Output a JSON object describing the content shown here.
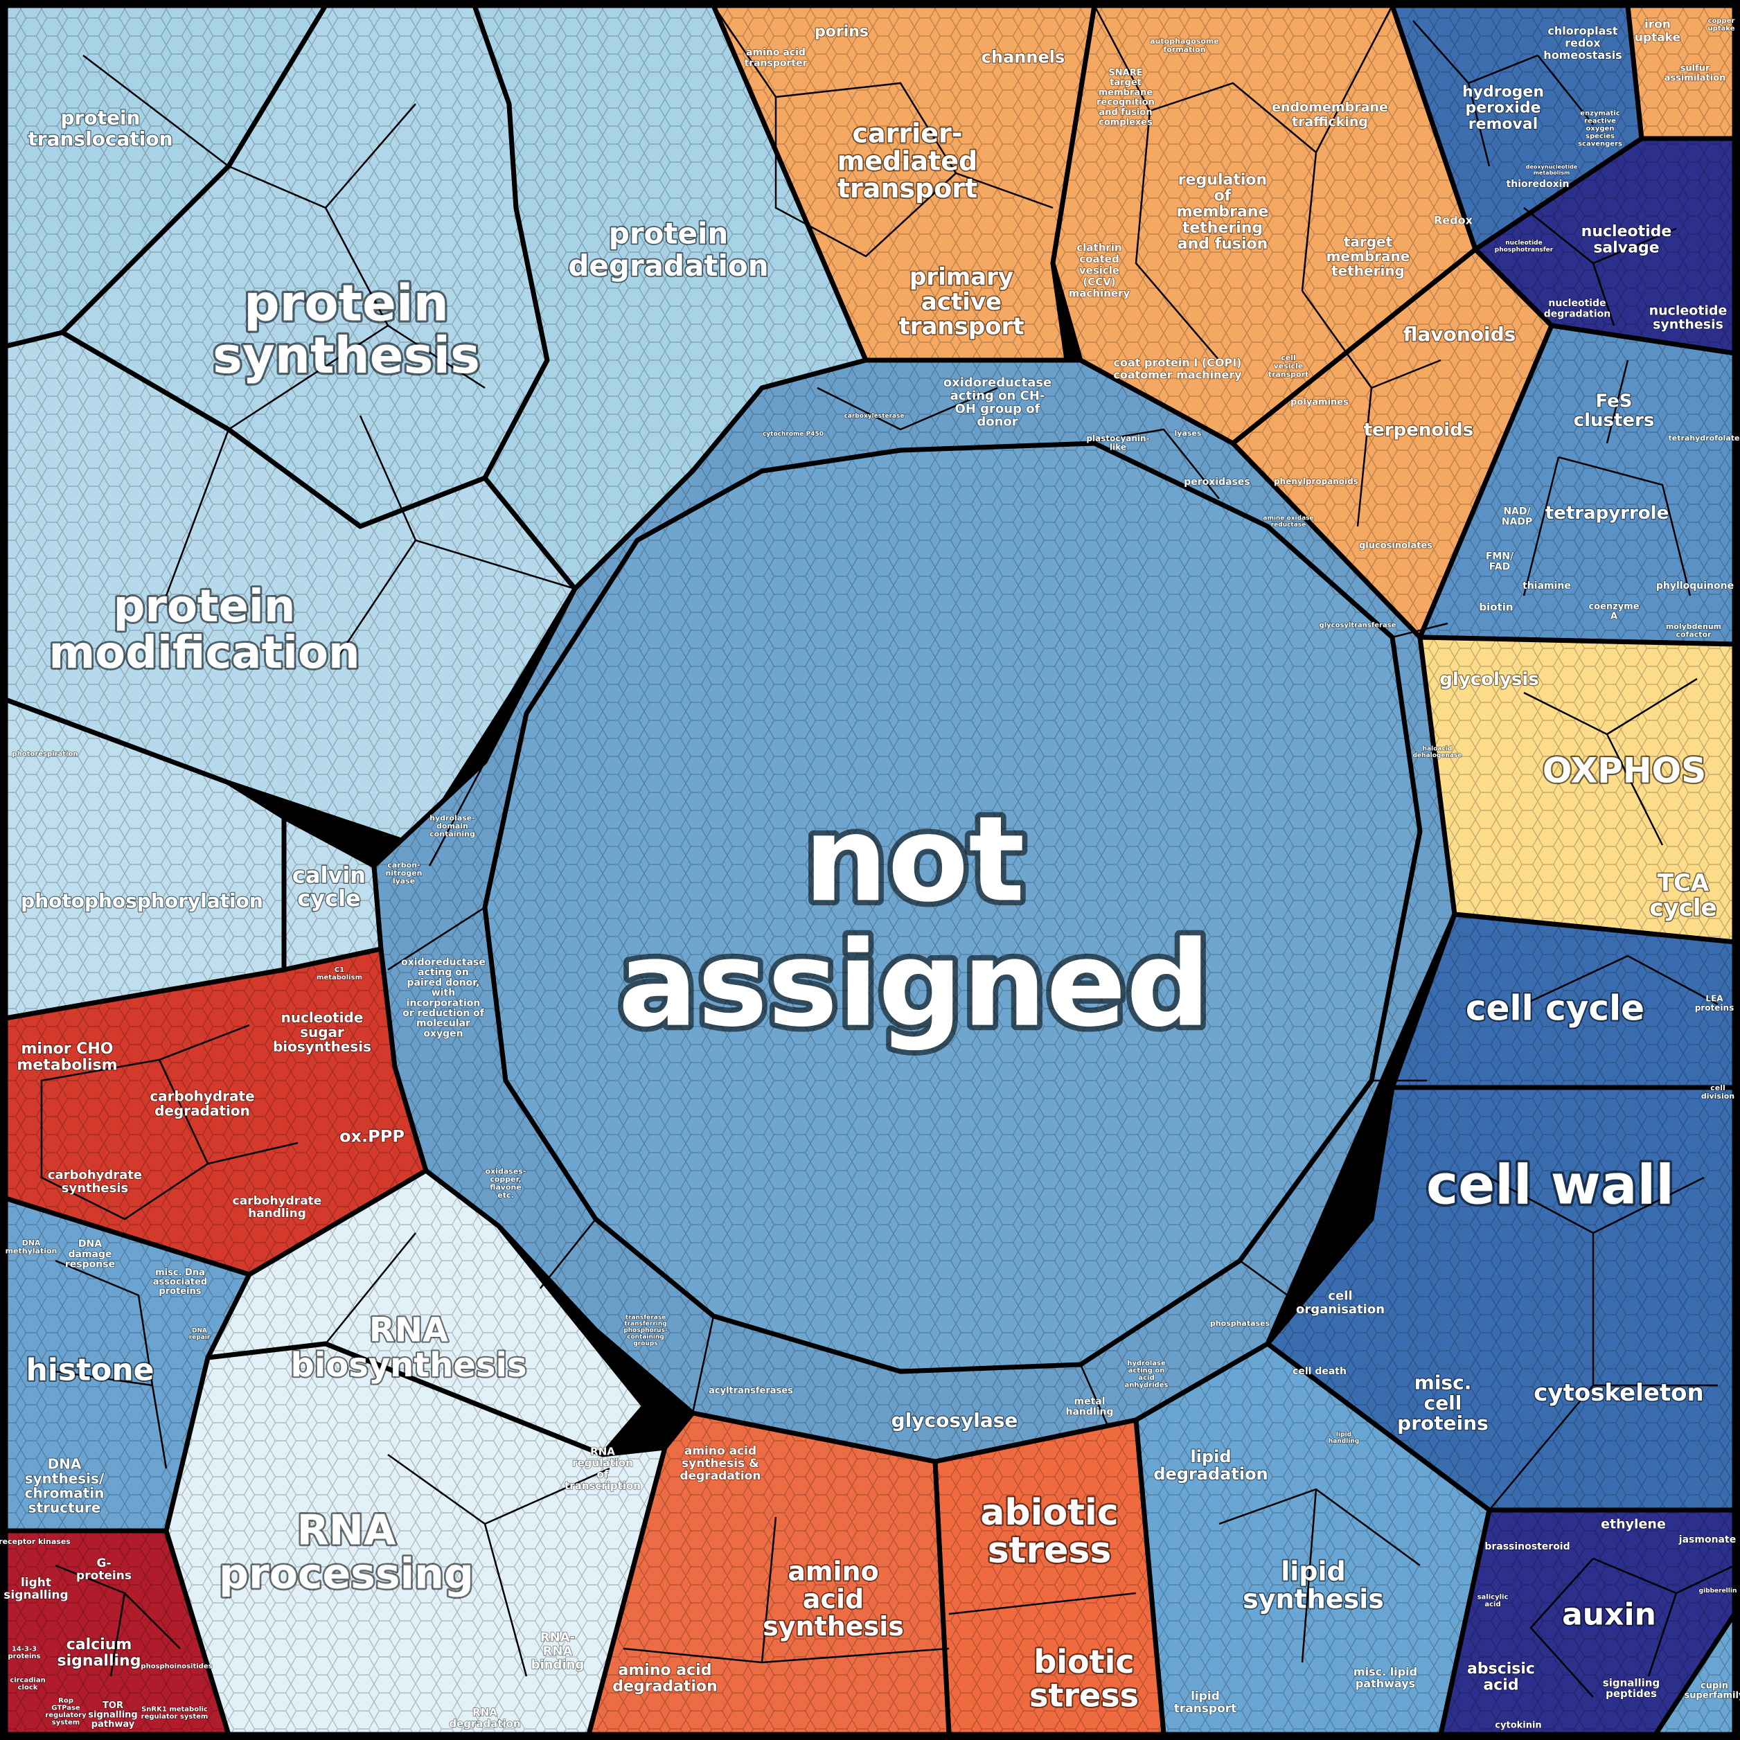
{
  "colors": {
    "protein": "#a8d2e6",
    "protein_alt": "#b6daeb",
    "photosynthesis": "#bfdfee",
    "rna": "#e2f1f8",
    "not_assigned": "#6ea6cf",
    "enzyme": "#6a9fca",
    "transport": "#f5a862",
    "secondary": "#f5a862",
    "redox_dark": "#3d6eb0",
    "nucleotide": "#2c2f8c",
    "cofactor": "#5a92c6",
    "energy": "#fddc8a",
    "cell": "#3a6db0",
    "carbohydrate": "#d33a2b",
    "signalling": "#b01c2c",
    "chromatin": "#6ba4d0",
    "amino_acid": "#ec6c44",
    "stress": "#f06a40",
    "lipid": "#6aa6d3",
    "hormone": "#2c2f8c",
    "outline": "#000000"
  },
  "regions": {
    "not_assigned": [
      "not",
      "assigned"
    ],
    "protein_synthesis": [
      "protein",
      "synthesis"
    ],
    "protein_modification": [
      "protein",
      "modification"
    ],
    "protein_degradation": [
      "protein",
      "degradation"
    ],
    "protein_translocation": [
      "protein",
      "translocation"
    ],
    "photophosphorylation": "photophosphorylation",
    "calvin_cycle": [
      "calvin",
      "cycle"
    ],
    "photorespiration": "photorespiration",
    "rna_biosynthesis": [
      "RNA",
      "biosynthesis"
    ],
    "rna_processing": [
      "RNA",
      "processing"
    ],
    "rna_regulation": [
      "RNA",
      "regulation",
      "of",
      "transcription"
    ],
    "rna_binding": [
      "RNA-",
      "RNA",
      "binding"
    ],
    "rna_degradation": [
      "RNA",
      "degradation"
    ],
    "carrier_transport": [
      "carrier-",
      "mediated",
      "transport"
    ],
    "primary_active_transport": [
      "primary",
      "active",
      "transport"
    ],
    "channels": "channels",
    "porins": "porins",
    "amino_acid_transporter": [
      "amino acid",
      "transporter"
    ],
    "endomembrane_trafficking": [
      "endomembrane",
      "trafficking"
    ],
    "membrane_tethering": [
      "regulation",
      "of",
      "membrane",
      "tethering",
      "and fusion"
    ],
    "target_membrane_tethering": [
      "target",
      "membrane",
      "tethering"
    ],
    "snare": [
      "SNARE",
      "target",
      "membrane",
      "recognition",
      "and fusion",
      "complexes"
    ],
    "autophagosome": [
      "autophagosome",
      "formation"
    ],
    "clathrin": [
      "clathrin",
      "coated",
      "vesicle",
      "(CCV)",
      "machinery"
    ],
    "copi": [
      "coat protein I (COPI)",
      "coatomer machinery"
    ],
    "cell_vesicle": [
      "cell",
      "vesicle",
      "transport"
    ],
    "flavonoids": "flavonoids",
    "terpenoids": "terpenoids",
    "polyamines": "polyamines",
    "phenylpropanoids": "phenylpropanoids",
    "glucosinolates": "glucosinolates",
    "iron_uptake": [
      "iron",
      "uptake"
    ],
    "sulfur_assimilation": [
      "sulfur",
      "assimilation"
    ],
    "copper": [
      "copper",
      "uptake"
    ],
    "chloroplast_redox": [
      "chloroplast",
      "redox",
      "homeostasis"
    ],
    "hydrogen_peroxide": [
      "hydrogen",
      "peroxide",
      "removal"
    ],
    "ros_scavengers": [
      "enzymatic",
      "reactive",
      "oxygen",
      "species",
      "scavengers"
    ],
    "thioredoxin": "thioredoxin",
    "redox": "Redox",
    "nucleotide_salvage": [
      "nucleotide",
      "salvage"
    ],
    "nucleotide_degradation": [
      "nucleotide",
      "degradation"
    ],
    "nucleotide_synthesis": [
      "nucleotide",
      "synthesis"
    ],
    "deoxynucleotide": [
      "deoxynucleotide",
      "metabolism"
    ],
    "nucleotide_phosphotransfer": [
      "nucleotide",
      "phosphotransfer"
    ],
    "fes_clusters": [
      "FeS",
      "clusters"
    ],
    "tetrapyrrole": "tetrapyrrole",
    "tetrahydrofolate": "tetrahydrofolate",
    "nad_nadp": [
      "NAD/",
      "NADP"
    ],
    "fmn_fad": [
      "FMN/",
      "FAD"
    ],
    "thiamine": "thiamine",
    "phylloquinone": "phylloquinone",
    "biotin": "biotin",
    "coenzyme_a": [
      "coenzyme",
      "A"
    ],
    "molybdenum": [
      "molybdenum",
      "cofactor"
    ],
    "glycolysis": "glycolysis",
    "oxphos": "OXPHOS",
    "tca_cycle": [
      "TCA",
      "cycle"
    ],
    "cell_cycle": "cell cycle",
    "cell_wall": "cell wall",
    "cell_organisation": [
      "cell",
      "organisation"
    ],
    "cell_death": "cell death",
    "misc_cell_proteins": [
      "misc.",
      "cell",
      "proteins"
    ],
    "cytoskeleton": "cytoskeleton",
    "lea_proteins": [
      "LEA",
      "proteins"
    ],
    "cell_division": [
      "cell",
      "division"
    ],
    "minor_cho": [
      "minor CHO",
      "metabolism"
    ],
    "carbohydrate_degradation": [
      "carbohydrate",
      "degradation"
    ],
    "nucleotide_sugar": [
      "nucleotide",
      "sugar",
      "biosynthesis"
    ],
    "ox_ppp": "ox.PPP",
    "carbohydrate_synthesis": [
      "carbohydrate",
      "synthesis"
    ],
    "carbohydrate_handling": [
      "carbohydrate",
      "handling"
    ],
    "c1_metabolism": [
      "C1",
      "metabolism"
    ],
    "dna_methylation": [
      "DNA",
      "methylation"
    ],
    "dna_damage": [
      "DNA",
      "damage",
      "response"
    ],
    "misc_dna": [
      "misc. Dna",
      "associated",
      "proteins"
    ],
    "dna_repair": [
      "DNA",
      "repair"
    ],
    "histone": "histone",
    "dna_synthesis": [
      "DNA",
      "synthesis/",
      "chromatin",
      "structure"
    ],
    "receptor_kinases": "receptor kinases",
    "g_proteins": [
      "G-",
      "proteins"
    ],
    "light_signalling": [
      "light",
      "signalling"
    ],
    "calcium_signalling": [
      "calcium",
      "signalling"
    ],
    "phosphoinositides": "phosphoinositides",
    "proteins_1433": [
      "14-3-3",
      "proteins"
    ],
    "circadian_clock": [
      "circadian",
      "clock"
    ],
    "rop_gtpase": [
      "Rop",
      "GTPase",
      "regulatory",
      "system"
    ],
    "tor_signalling": [
      "TOR",
      "signalling",
      "pathway"
    ],
    "snrk1": [
      "SnRK1 metabolic",
      "regulator system"
    ],
    "amino_acid_synthesis_degradation": [
      "amino acid",
      "synthesis &",
      "degradation"
    ],
    "amino_acid_synthesis": [
      "amino",
      "acid",
      "synthesis"
    ],
    "amino_acid_degradation": [
      "amino acid",
      "degradation"
    ],
    "abiotic_stress": [
      "abiotic",
      "stress"
    ],
    "biotic_stress": [
      "biotic",
      "stress"
    ],
    "lipid_degradation": [
      "lipid",
      "degradation"
    ],
    "lipid_synthesis": [
      "lipid",
      "synthesis"
    ],
    "lipid_handling": [
      "lipid",
      "handling"
    ],
    "misc_lipid": [
      "misc. lipid",
      "pathways"
    ],
    "lipid_transport": [
      "lipid",
      "transport"
    ],
    "brassinosteroid": "brassinosteroid",
    "ethylene": "ethylene",
    "jasmonate": "jasmonate",
    "salicylic_acid": [
      "salicylic",
      "acid"
    ],
    "gibberellin": "gibberellin",
    "auxin": "auxin",
    "abscisic_acid": [
      "abscisic",
      "acid"
    ],
    "cytokinin": "cytokinin",
    "signalling_peptides": [
      "signalling",
      "peptides"
    ],
    "cupin": [
      "cupin",
      "superfamily"
    ],
    "oxidoreductase_ch_oh": [
      "oxidoreductase",
      "acting on CH-",
      "OH group of",
      "donor"
    ],
    "oxidoreductase_paired": [
      "oxidoreductase",
      "acting on",
      "paired donor,",
      "with",
      "incorporation",
      "or reduction of",
      "molecular",
      "oxygen"
    ],
    "hydrolase_domain": [
      "hydrolase-",
      "domain",
      "containing"
    ],
    "carbon_nitrogen_lyase": [
      "carbon-",
      "nitrogen",
      "lyase"
    ],
    "oxidases": [
      "oxidases-",
      "copper,",
      "flavone",
      "etc."
    ],
    "glycosylase": "glycosylase",
    "metal_handling": [
      "metal",
      "handling"
    ],
    "acyltransferases": "acyltransferases",
    "transferase_phosphorus": [
      "transferase",
      "transferring",
      "phosphorus-",
      "containing",
      "groups"
    ],
    "hydrolase_acid_anhydrides": [
      "hydrolase",
      "acting on",
      "acid",
      "anhydrides"
    ],
    "phosphatases": "phosphatases",
    "plastocyanin": [
      "plastocyanin-",
      "like"
    ],
    "lyases": "lyases",
    "peroxidases": "peroxidases",
    "glycosyltransferase": "glycosyltransferase",
    "cytochrome_p450": "cytochrome P450",
    "carboxylesterase": "carboxylesterase",
    "amine_oxidase": [
      "amine oxidase",
      "reductase"
    ],
    "haloacid": [
      "haloacid",
      "dehalogenase"
    ]
  }
}
